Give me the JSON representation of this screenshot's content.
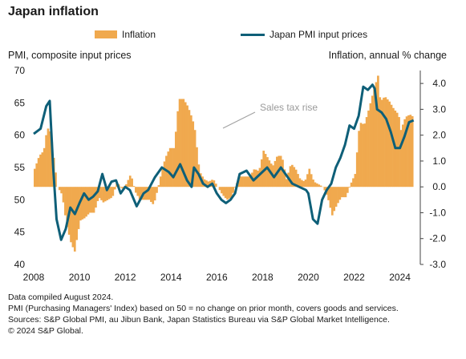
{
  "chart_data": {
    "type": "bar+line",
    "title": "Japan inflation",
    "legend": {
      "items": [
        {
          "name": "Inflation",
          "kind": "bar",
          "color": "#F0A94E"
        },
        {
          "name": "Japan PMI input prices",
          "kind": "line",
          "color": "#0E5F78"
        }
      ],
      "placement": "top"
    },
    "left_axis": {
      "title": "PMI, composite input prices",
      "range": [
        40,
        70
      ],
      "ticks": [
        40,
        45,
        50,
        55,
        60,
        65,
        70
      ]
    },
    "right_axis": {
      "title": "Inflation, annual % change",
      "range": [
        -3.0,
        4.5
      ],
      "ticks": [
        "-3.0",
        "-2.0",
        "-1.0",
        "0.0",
        "1.0",
        "2.0",
        "3.0",
        "4.0"
      ]
    },
    "x_axis": {
      "range": [
        2008,
        2024.75
      ],
      "ticks": [
        "2008",
        "2010",
        "2012",
        "2014",
        "2016",
        "2018",
        "2020",
        "2022",
        "2024"
      ]
    },
    "annotation": "Sales tax rise",
    "inflation": [
      [
        2008.0,
        0.7
      ],
      [
        2008.2,
        1.2
      ],
      [
        2008.4,
        1.4
      ],
      [
        2008.55,
        2.3
      ],
      [
        2008.7,
        2.1
      ],
      [
        2008.85,
        1.0
      ],
      [
        2009.0,
        0.0
      ],
      [
        2009.2,
        -0.3
      ],
      [
        2009.4,
        -1.5
      ],
      [
        2009.6,
        -2.2
      ],
      [
        2009.75,
        -2.5
      ],
      [
        2009.9,
        -1.7
      ],
      [
        2010.0,
        -1.3
      ],
      [
        2010.2,
        -1.2
      ],
      [
        2010.4,
        -1.0
      ],
      [
        2010.6,
        -1.0
      ],
      [
        2010.8,
        -0.4
      ],
      [
        2011.0,
        -0.6
      ],
      [
        2011.2,
        -0.5
      ],
      [
        2011.4,
        -0.4
      ],
      [
        2011.6,
        0.2
      ],
      [
        2011.8,
        -0.1
      ],
      [
        2012.0,
        0.1
      ],
      [
        2012.2,
        0.5
      ],
      [
        2012.4,
        -0.2
      ],
      [
        2012.6,
        -0.5
      ],
      [
        2012.8,
        -0.5
      ],
      [
        2013.0,
        -0.5
      ],
      [
        2013.2,
        -0.7
      ],
      [
        2013.4,
        0.0
      ],
      [
        2013.5,
        0.4
      ],
      [
        2013.7,
        1.1
      ],
      [
        2013.9,
        1.5
      ],
      [
        2014.1,
        1.5
      ],
      [
        2014.3,
        3.4
      ],
      [
        2014.5,
        3.4
      ],
      [
        2014.7,
        3.1
      ],
      [
        2014.9,
        2.6
      ],
      [
        2015.0,
        2.2
      ],
      [
        2015.2,
        0.6
      ],
      [
        2015.4,
        0.3
      ],
      [
        2015.6,
        0.2
      ],
      [
        2015.8,
        0.3
      ],
      [
        2016.0,
        0.0
      ],
      [
        2016.2,
        -0.3
      ],
      [
        2016.4,
        -0.5
      ],
      [
        2016.6,
        -0.4
      ],
      [
        2016.8,
        0.1
      ],
      [
        2017.0,
        0.4
      ],
      [
        2017.2,
        0.4
      ],
      [
        2017.4,
        0.4
      ],
      [
        2017.6,
        0.7
      ],
      [
        2017.8,
        0.6
      ],
      [
        2018.0,
        1.4
      ],
      [
        2018.2,
        1.1
      ],
      [
        2018.4,
        0.8
      ],
      [
        2018.6,
        1.2
      ],
      [
        2018.8,
        1.2
      ],
      [
        2019.0,
        0.3
      ],
      [
        2019.2,
        0.9
      ],
      [
        2019.4,
        0.7
      ],
      [
        2019.6,
        0.3
      ],
      [
        2019.8,
        0.2
      ],
      [
        2020.0,
        0.7
      ],
      [
        2020.2,
        0.2
      ],
      [
        2020.4,
        0.1
      ],
      [
        2020.6,
        0.0
      ],
      [
        2020.8,
        -0.4
      ],
      [
        2021.0,
        -1.1
      ],
      [
        2021.2,
        -0.7
      ],
      [
        2021.4,
        -0.4
      ],
      [
        2021.6,
        -0.4
      ],
      [
        2021.8,
        0.1
      ],
      [
        2022.0,
        0.5
      ],
      [
        2022.2,
        2.5
      ],
      [
        2022.4,
        2.4
      ],
      [
        2022.6,
        3.0
      ],
      [
        2022.8,
        3.7
      ],
      [
        2023.0,
        4.3
      ],
      [
        2023.1,
        3.3
      ],
      [
        2023.3,
        3.5
      ],
      [
        2023.5,
        3.3
      ],
      [
        2023.7,
        3.0
      ],
      [
        2023.9,
        2.8
      ],
      [
        2024.0,
        2.2
      ],
      [
        2024.2,
        2.7
      ],
      [
        2024.4,
        2.8
      ],
      [
        2024.55,
        2.7
      ]
    ],
    "pmi": [
      [
        2008.0,
        60.2
      ],
      [
        2008.3,
        61.0
      ],
      [
        2008.55,
        64.5
      ],
      [
        2008.7,
        65.3
      ],
      [
        2008.85,
        55.0
      ],
      [
        2009.0,
        47.0
      ],
      [
        2009.2,
        43.8
      ],
      [
        2009.4,
        45.5
      ],
      [
        2009.6,
        48.8
      ],
      [
        2009.8,
        47.8
      ],
      [
        2010.0,
        49.5
      ],
      [
        2010.2,
        51.0
      ],
      [
        2010.4,
        50.0
      ],
      [
        2010.6,
        50.5
      ],
      [
        2010.8,
        51.3
      ],
      [
        2011.0,
        54.0
      ],
      [
        2011.2,
        51.5
      ],
      [
        2011.4,
        52.8
      ],
      [
        2011.6,
        53.0
      ],
      [
        2011.8,
        51.0
      ],
      [
        2012.0,
        52.0
      ],
      [
        2012.2,
        51.5
      ],
      [
        2012.5,
        49.0
      ],
      [
        2012.8,
        51.0
      ],
      [
        2013.0,
        51.5
      ],
      [
        2013.3,
        53.5
      ],
      [
        2013.6,
        55.0
      ],
      [
        2013.9,
        54.3
      ],
      [
        2014.1,
        53.5
      ],
      [
        2014.4,
        55.5
      ],
      [
        2014.7,
        53.0
      ],
      [
        2014.9,
        52.0
      ],
      [
        2015.0,
        55.0
      ],
      [
        2015.2,
        54.0
      ],
      [
        2015.4,
        52.5
      ],
      [
        2015.6,
        52.0
      ],
      [
        2015.8,
        52.5
      ],
      [
        2016.0,
        51.0
      ],
      [
        2016.2,
        50.0
      ],
      [
        2016.4,
        49.5
      ],
      [
        2016.6,
        50.0
      ],
      [
        2016.8,
        51.0
      ],
      [
        2017.0,
        54.0
      ],
      [
        2017.3,
        54.5
      ],
      [
        2017.6,
        53.0
      ],
      [
        2017.9,
        54.0
      ],
      [
        2018.2,
        55.0
      ],
      [
        2018.5,
        53.5
      ],
      [
        2018.8,
        55.0
      ],
      [
        2019.0,
        54.0
      ],
      [
        2019.3,
        52.5
      ],
      [
        2019.6,
        52.0
      ],
      [
        2019.9,
        51.5
      ],
      [
        2020.0,
        51.0
      ],
      [
        2020.2,
        47.0
      ],
      [
        2020.4,
        46.3
      ],
      [
        2020.6,
        50.0
      ],
      [
        2020.8,
        51.5
      ],
      [
        2021.0,
        52.5
      ],
      [
        2021.2,
        55.0
      ],
      [
        2021.4,
        56.5
      ],
      [
        2021.6,
        58.5
      ],
      [
        2021.8,
        61.5
      ],
      [
        2022.0,
        61.0
      ],
      [
        2022.2,
        63.0
      ],
      [
        2022.4,
        67.5
      ],
      [
        2022.6,
        67.0
      ],
      [
        2022.8,
        67.8
      ],
      [
        2022.9,
        67.2
      ],
      [
        2023.0,
        64.0
      ],
      [
        2023.2,
        63.5
      ],
      [
        2023.4,
        62.5
      ],
      [
        2023.6,
        60.5
      ],
      [
        2023.8,
        58.0
      ],
      [
        2024.0,
        58.0
      ],
      [
        2024.2,
        59.8
      ],
      [
        2024.4,
        62.0
      ],
      [
        2024.6,
        62.3
      ]
    ]
  },
  "notes": [
    "Data compiled August 2024.",
    "PMI (Purchasing Managers' Index) based on 50 = no change on prior month, covers goods and services.",
    "Sources: S&P Global PMI, au Jibun Bank, Japan Statistics Bureau via S&P Global Market Intelligence.",
    "© 2024 S&P Global."
  ]
}
